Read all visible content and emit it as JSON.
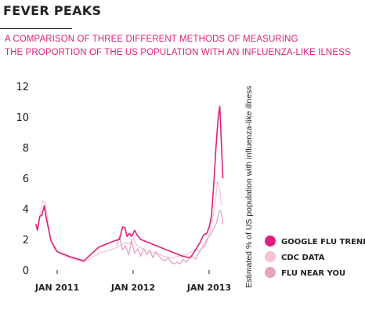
{
  "title": "FEVER PEAKS",
  "subtitle_lines": [
    "A COMPARISON OF THREE DIFFERENT METHODS OF MEASURING",
    "THE PROPORTION OF THE US POPULATION WITH AN INFLUENZA-LIKE ILNESS"
  ],
  "chart_data": {
    "type": "line",
    "title": "FEVER PEAKS",
    "ylabel": "Estimated % of US population with influenza-like illness",
    "xlabel": "",
    "ylim": [
      0,
      12
    ],
    "y_ticks": [
      0,
      2,
      4,
      6,
      8,
      10,
      12
    ],
    "x_ticks": [
      {
        "label": "JAN 2011",
        "t": 2011.0
      },
      {
        "label": "JAN 2012",
        "t": 2012.0
      },
      {
        "label": "JAN 2013",
        "t": 2013.0
      }
    ],
    "legend_position": "right",
    "series": [
      {
        "name": "GOOGLE FLU TRENDS",
        "color": "#e0207a",
        "points": [
          [
            2010.72,
            3.0
          ],
          [
            2010.74,
            2.6
          ],
          [
            2010.77,
            3.5
          ],
          [
            2010.8,
            3.6
          ],
          [
            2010.83,
            4.2
          ],
          [
            2010.86,
            3.3
          ],
          [
            2010.92,
            1.9
          ],
          [
            2011.0,
            1.2
          ],
          [
            2011.15,
            0.9
          ],
          [
            2011.35,
            0.6
          ],
          [
            2011.55,
            1.5
          ],
          [
            2011.75,
            1.9
          ],
          [
            2011.82,
            2.0
          ],
          [
            2011.86,
            2.8
          ],
          [
            2011.89,
            2.8
          ],
          [
            2011.92,
            2.2
          ],
          [
            2011.95,
            2.4
          ],
          [
            2011.98,
            2.2
          ],
          [
            2012.02,
            2.6
          ],
          [
            2012.05,
            2.3
          ],
          [
            2012.1,
            2.0
          ],
          [
            2012.2,
            1.8
          ],
          [
            2012.35,
            1.5
          ],
          [
            2012.5,
            1.2
          ],
          [
            2012.65,
            0.9
          ],
          [
            2012.75,
            0.8
          ],
          [
            2012.82,
            1.3
          ],
          [
            2012.88,
            1.8
          ],
          [
            2012.93,
            2.3
          ],
          [
            2012.97,
            2.4
          ],
          [
            2013.0,
            2.8
          ],
          [
            2013.03,
            3.5
          ],
          [
            2013.06,
            5.5
          ],
          [
            2013.09,
            8.0
          ],
          [
            2013.12,
            10.0
          ],
          [
            2013.14,
            10.7
          ],
          [
            2013.16,
            8.5
          ],
          [
            2013.18,
            6.0
          ]
        ]
      },
      {
        "name": "CDC DATA",
        "color": "#f7c2d8",
        "points": [
          [
            2010.72,
            2.8
          ],
          [
            2010.75,
            2.9
          ],
          [
            2010.78,
            3.8
          ],
          [
            2010.81,
            4.5
          ],
          [
            2010.84,
            4.4
          ],
          [
            2010.87,
            3.5
          ],
          [
            2010.91,
            2.0
          ],
          [
            2010.97,
            1.3
          ],
          [
            2011.1,
            0.9
          ],
          [
            2011.35,
            0.5
          ],
          [
            2011.55,
            1.1
          ],
          [
            2011.75,
            1.4
          ],
          [
            2011.83,
            1.6
          ],
          [
            2011.9,
            1.8
          ],
          [
            2011.95,
            1.7
          ],
          [
            2012.0,
            2.1
          ],
          [
            2012.05,
            1.6
          ],
          [
            2012.12,
            1.4
          ],
          [
            2012.2,
            1.2
          ],
          [
            2012.3,
            1.1
          ],
          [
            2012.4,
            0.9
          ],
          [
            2012.5,
            0.8
          ],
          [
            2012.6,
            0.9
          ],
          [
            2012.7,
            1.0
          ],
          [
            2012.8,
            1.3
          ],
          [
            2012.88,
            1.3
          ],
          [
            2012.95,
            1.6
          ],
          [
            2013.0,
            2.3
          ],
          [
            2013.04,
            3.2
          ],
          [
            2013.08,
            4.5
          ],
          [
            2013.11,
            5.8
          ],
          [
            2013.14,
            5.2
          ],
          [
            2013.16,
            4.3
          ],
          [
            2013.18,
            4.3
          ]
        ]
      },
      {
        "name": "FLU NEAR YOU",
        "color": "#e8a3c3",
        "points": [
          [
            2011.78,
            1.6
          ],
          [
            2011.82,
            2.2
          ],
          [
            2011.86,
            1.3
          ],
          [
            2011.9,
            1.6
          ],
          [
            2011.94,
            1.0
          ],
          [
            2011.98,
            1.9
          ],
          [
            2012.02,
            1.1
          ],
          [
            2012.06,
            1.4
          ],
          [
            2012.1,
            0.9
          ],
          [
            2012.14,
            1.4
          ],
          [
            2012.18,
            1.0
          ],
          [
            2012.22,
            1.3
          ],
          [
            2012.26,
            0.8
          ],
          [
            2012.3,
            1.2
          ],
          [
            2012.34,
            0.9
          ],
          [
            2012.38,
            0.7
          ],
          [
            2012.42,
            0.6
          ],
          [
            2012.46,
            0.8
          ],
          [
            2012.5,
            0.5
          ],
          [
            2012.54,
            0.4
          ],
          [
            2012.58,
            0.5
          ],
          [
            2012.62,
            0.4
          ],
          [
            2012.66,
            0.7
          ],
          [
            2012.7,
            0.5
          ],
          [
            2012.74,
            0.8
          ],
          [
            2012.78,
            0.9
          ],
          [
            2012.82,
            0.7
          ],
          [
            2012.86,
            1.1
          ],
          [
            2012.9,
            1.4
          ],
          [
            2012.94,
            1.7
          ],
          [
            2012.98,
            2.1
          ],
          [
            2013.02,
            2.3
          ],
          [
            2013.06,
            2.7
          ],
          [
            2013.09,
            3.0
          ],
          [
            2013.12,
            3.5
          ],
          [
            2013.14,
            3.9
          ],
          [
            2013.16,
            3.8
          ],
          [
            2013.18,
            3.0
          ]
        ]
      }
    ]
  }
}
